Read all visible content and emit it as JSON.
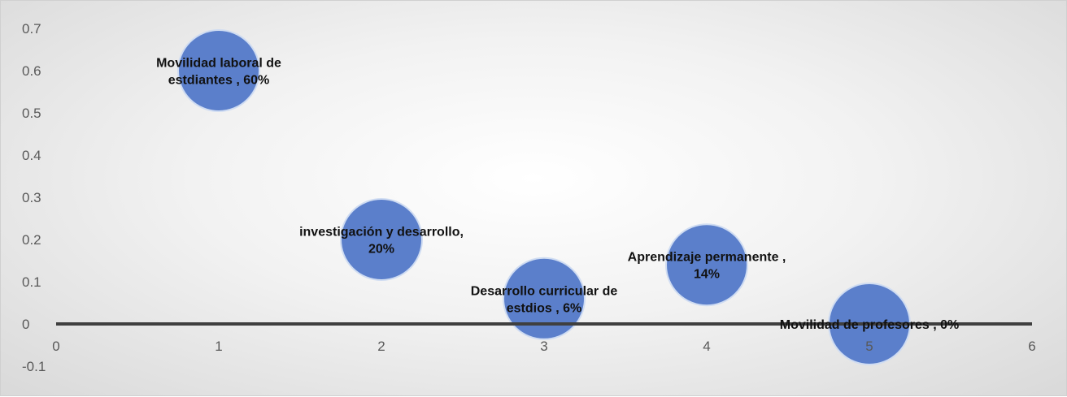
{
  "chart_data": {
    "type": "scatter",
    "title": "",
    "xlabel": "",
    "ylabel": "",
    "xlim": [
      0,
      6
    ],
    "ylim": [
      -0.1,
      0.7
    ],
    "x_ticks": [
      "0",
      "1",
      "2",
      "3",
      "4",
      "5",
      "6"
    ],
    "y_ticks": [
      "0.7",
      "0.6",
      "0.5",
      "0.4",
      "0.3",
      "0.2",
      "0.1",
      "0",
      "-0.1"
    ],
    "grid": false,
    "legend": "none",
    "bubble_color": "#5b7fcb",
    "points": [
      {
        "x": 1,
        "y": 0.6,
        "label_lines": [
          "Movilidad laboral de",
          "estdiantes , 60%"
        ]
      },
      {
        "x": 2,
        "y": 0.2,
        "label_lines": [
          "investigación y desarrollo,",
          "20%"
        ]
      },
      {
        "x": 3,
        "y": 0.06,
        "label_lines": [
          "Desarrollo curricular de",
          "estdios , 6%"
        ]
      },
      {
        "x": 4,
        "y": 0.14,
        "label_lines": [
          "Aprendizaje permanente ,",
          "14%"
        ]
      },
      {
        "x": 5,
        "y": 0,
        "label_lines": [
          "Movilidad de profesores , 0%"
        ]
      }
    ]
  }
}
